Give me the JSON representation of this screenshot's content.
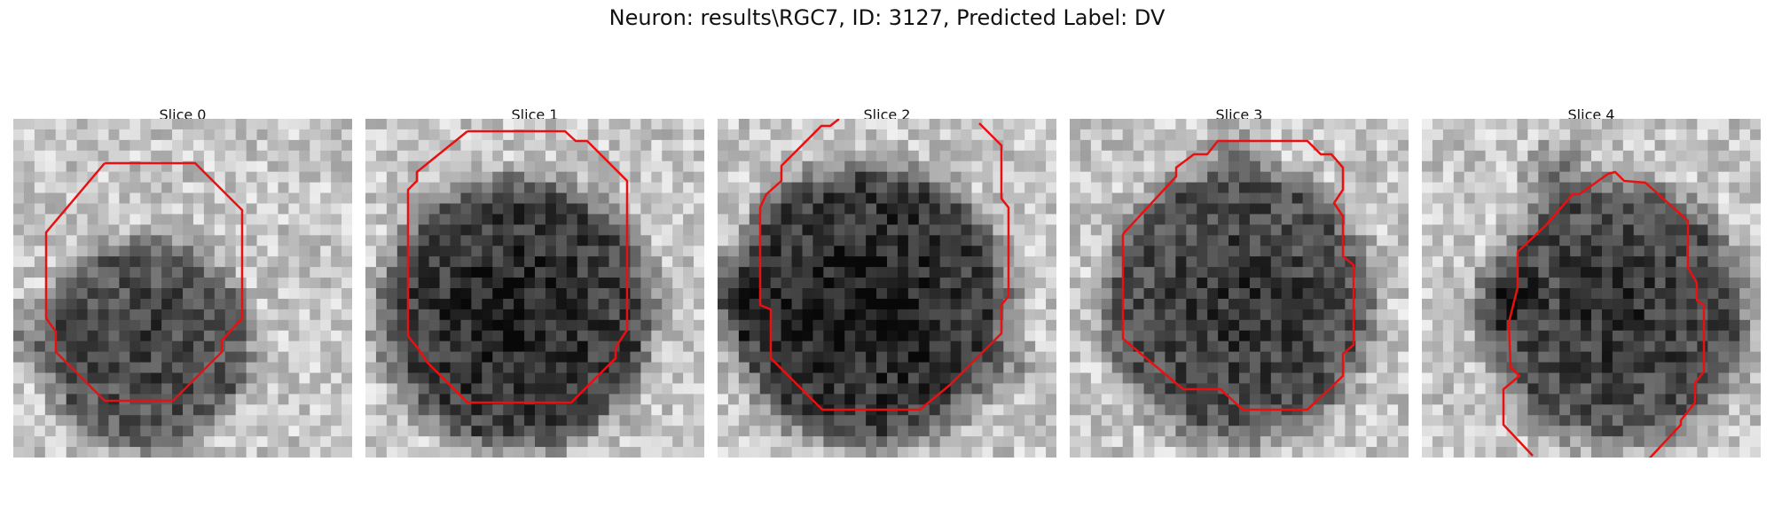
{
  "figure": {
    "title": "Neuron: results\\RGC7, ID: 3127, Predicted Label: DV"
  },
  "colors": {
    "contour": "#e81010",
    "background": "#ffffff"
  },
  "slices": [
    {
      "label": "Slice 0"
    },
    {
      "label": "Slice 1"
    },
    {
      "label": "Slice 2"
    },
    {
      "label": "Slice 3"
    },
    {
      "label": "Slice 4"
    }
  ]
}
